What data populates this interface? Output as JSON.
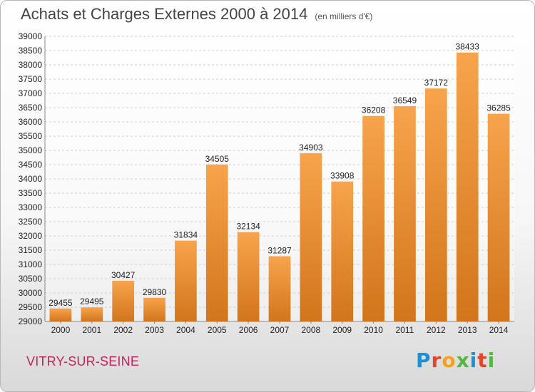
{
  "header": {
    "title": "Achats et Charges Externes 2000 à 2014",
    "unit": "(en milliers d'€)"
  },
  "footer": {
    "city": "VITRY-SUR-SEINE",
    "logo": "Proxiti"
  },
  "colors": {
    "bar_light": "#f7a44c",
    "bar_dark": "#d2751b",
    "grid": "#cfcfcf",
    "city": "#c0245c"
  },
  "chart_data": {
    "type": "bar",
    "title": "Achats et Charges Externes 2000 à 2014",
    "subtitle": "(en milliers d'€)",
    "xlabel": "",
    "ylabel": "",
    "categories": [
      "2000",
      "2001",
      "2002",
      "2003",
      "2004",
      "2005",
      "2006",
      "2007",
      "2008",
      "2009",
      "2010",
      "2011",
      "2012",
      "2013",
      "2014"
    ],
    "values": [
      29455,
      29495,
      30427,
      29830,
      31834,
      34505,
      32134,
      31287,
      34903,
      33908,
      36208,
      36549,
      37172,
      38433,
      36285
    ],
    "ylim": [
      29000,
      39000
    ],
    "ytick_step": 500,
    "grid": true,
    "legend": "none"
  }
}
